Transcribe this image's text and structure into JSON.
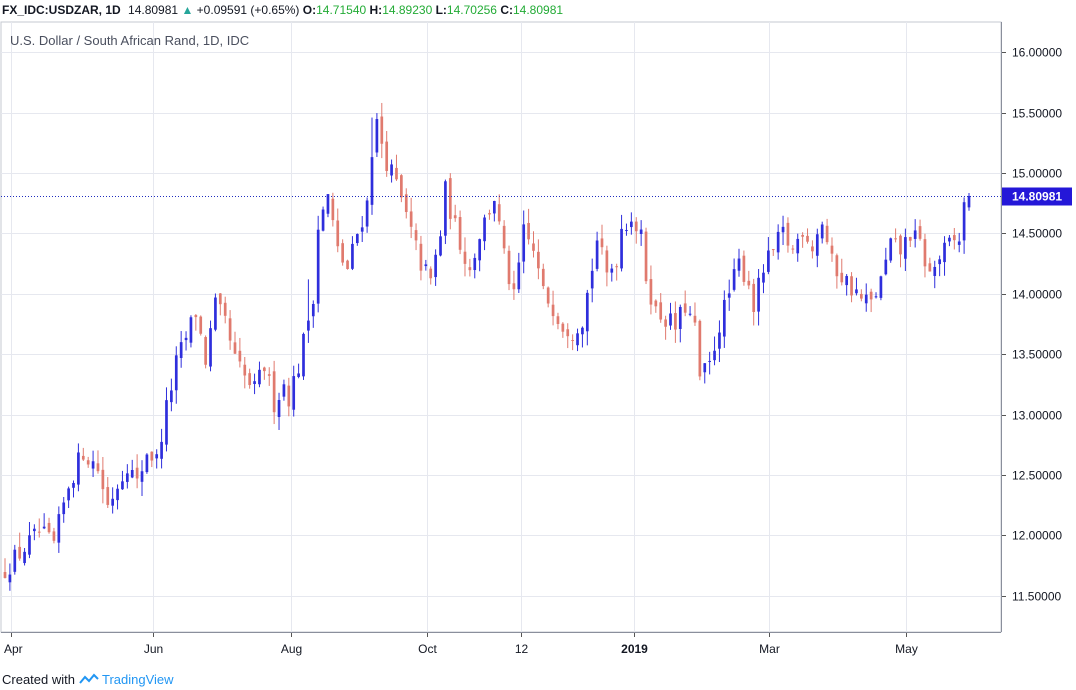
{
  "header": {
    "symbol": "FX_IDC:USDZAR, 1D",
    "last": "14.80981",
    "arrow": "▲",
    "change": "+0.09591 (+0.65%)",
    "o_label": "O:",
    "o_value": "14.71540",
    "h_label": "H:",
    "h_value": "14.89230",
    "l_label": "L:",
    "l_value": "14.70256",
    "c_label": "C:",
    "c_value": "14.80981"
  },
  "footer": {
    "created_with": "Created with",
    "brand": "TradingView"
  },
  "colors": {
    "up": "#2e2edc",
    "down": "#e07a6e",
    "grid": "#e6e8ef",
    "price_line": "#1f2dbf",
    "price_label_bg": "#2417d8",
    "header_green": "#22ab35"
  },
  "chart_data": {
    "type": "candlestick",
    "title": "U.S. Dollar / South African Rand, 1D, IDC",
    "y_ticks": [
      "16.00000",
      "15.50000",
      "15.00000",
      "14.50000",
      "14.00000",
      "13.50000",
      "13.00000",
      "12.50000",
      "12.00000",
      "11.50000"
    ],
    "x_ticks": [
      "Apr",
      "Jun",
      "Aug",
      "Oct",
      "12",
      "2019",
      "Mar",
      "May"
    ],
    "bold_x_ticks": [
      "2019"
    ],
    "ylim": [
      11.2,
      16.25
    ],
    "grid": true,
    "last_price_label": "14.80981",
    "last_price": 14.80981,
    "close_path": [
      [
        0,
        11.72
      ],
      [
        3,
        11.85
      ],
      [
        7,
        12.02
      ],
      [
        9,
        11.95
      ],
      [
        10,
        11.92
      ],
      [
        13,
        12.42
      ],
      [
        16,
        12.7
      ],
      [
        19,
        12.55
      ],
      [
        21,
        12.25
      ],
      [
        25,
        12.6
      ],
      [
        27,
        12.42
      ],
      [
        29,
        12.7
      ],
      [
        31,
        12.62
      ],
      [
        33,
        13.05
      ],
      [
        35,
        13.42
      ],
      [
        39,
        13.85
      ],
      [
        41,
        13.45
      ],
      [
        43,
        13.9
      ],
      [
        45,
        13.75
      ],
      [
        47,
        13.45
      ],
      [
        49,
        13.3
      ],
      [
        51,
        13.2
      ],
      [
        53,
        13.4
      ],
      [
        55,
        13.1
      ],
      [
        57,
        13.25
      ],
      [
        58,
        13.15
      ],
      [
        60,
        13.4
      ],
      [
        61,
        13.6
      ],
      [
        63,
        14.0
      ],
      [
        64,
        14.55
      ],
      [
        66,
        14.8
      ],
      [
        68,
        14.35
      ],
      [
        70,
        14.2
      ],
      [
        72,
        14.5
      ],
      [
        74,
        14.75
      ],
      [
        75,
        15.2
      ],
      [
        76,
        15.4
      ],
      [
        78,
        15.1
      ],
      [
        80,
        14.9
      ],
      [
        83,
        14.5
      ],
      [
        85,
        14.25
      ],
      [
        87,
        14.1
      ],
      [
        89,
        14.5
      ],
      [
        90,
        14.85
      ],
      [
        92,
        14.55
      ],
      [
        95,
        14.2
      ],
      [
        97,
        14.5
      ],
      [
        99,
        14.7
      ],
      [
        100,
        14.8
      ],
      [
        102,
        14.3
      ],
      [
        104,
        13.95
      ],
      [
        106,
        14.5
      ],
      [
        108,
        14.35
      ],
      [
        110,
        14.0
      ],
      [
        112,
        13.9
      ],
      [
        114,
        13.75
      ],
      [
        116,
        13.7
      ],
      [
        118,
        13.8
      ],
      [
        119,
        14.0
      ],
      [
        121,
        14.45
      ],
      [
        123,
        14.15
      ],
      [
        125,
        14.3
      ],
      [
        126,
        14.55
      ],
      [
        128,
        14.65
      ],
      [
        130,
        14.45
      ],
      [
        131,
        14.15
      ],
      [
        133,
        13.85
      ],
      [
        135,
        13.8
      ],
      [
        137,
        13.72
      ],
      [
        139,
        13.9
      ],
      [
        141,
        13.7
      ],
      [
        142,
        13.3
      ],
      [
        144,
        13.4
      ],
      [
        146,
        13.75
      ],
      [
        148,
        14.0
      ],
      [
        150,
        14.25
      ],
      [
        152,
        14.1
      ],
      [
        153,
        13.9
      ],
      [
        155,
        14.2
      ],
      [
        157,
        14.35
      ],
      [
        159,
        14.5
      ],
      [
        161,
        14.35
      ],
      [
        163,
        14.55
      ],
      [
        165,
        14.4
      ],
      [
        167,
        14.6
      ],
      [
        169,
        14.25
      ],
      [
        171,
        14.15
      ],
      [
        173,
        14.05
      ],
      [
        175,
        13.95
      ],
      [
        177,
        13.92
      ],
      [
        179,
        14.1
      ],
      [
        181,
        14.4
      ],
      [
        183,
        14.35
      ],
      [
        185,
        14.5
      ],
      [
        187,
        14.4
      ],
      [
        189,
        14.15
      ],
      [
        191,
        14.3
      ],
      [
        193,
        14.4
      ],
      [
        195,
        14.45
      ],
      [
        196,
        14.72
      ],
      [
        197,
        14.81
      ]
    ]
  }
}
